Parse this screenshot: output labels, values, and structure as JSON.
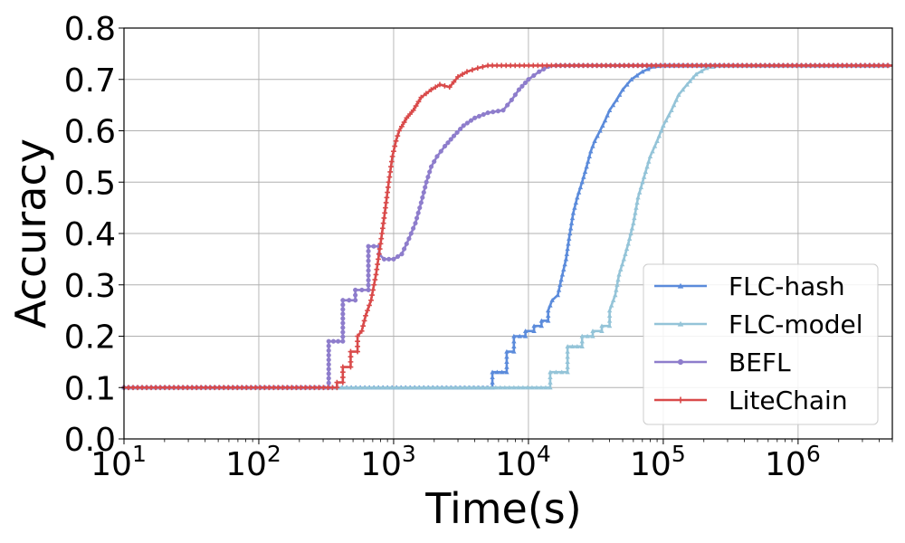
{
  "chart_data": {
    "type": "line",
    "title": "",
    "xlabel": "Time(s)",
    "ylabel": "Accuracy",
    "xscale": "log",
    "xlim": [
      10,
      5000000
    ],
    "ylim": [
      0.0,
      0.8
    ],
    "grid": true,
    "legend_position": "lower-right",
    "x_ticks": [
      {
        "value": 10,
        "base": "10",
        "exp": "1"
      },
      {
        "value": 100,
        "base": "10",
        "exp": "2"
      },
      {
        "value": 1000,
        "base": "10",
        "exp": "3"
      },
      {
        "value": 10000,
        "base": "10",
        "exp": "4"
      },
      {
        "value": 100000,
        "base": "10",
        "exp": "5"
      },
      {
        "value": 1000000,
        "base": "10",
        "exp": "6"
      }
    ],
    "y_ticks": [
      {
        "value": 0.0,
        "label": "0.0"
      },
      {
        "value": 0.1,
        "label": "0.1"
      },
      {
        "value": 0.2,
        "label": "0.2"
      },
      {
        "value": 0.3,
        "label": "0.3"
      },
      {
        "value": 0.4,
        "label": "0.4"
      },
      {
        "value": 0.5,
        "label": "0.5"
      },
      {
        "value": 0.6,
        "label": "0.6"
      },
      {
        "value": 0.7,
        "label": "0.7"
      },
      {
        "value": 0.8,
        "label": "0.8"
      }
    ],
    "series": [
      {
        "name": "FLC-hash",
        "color": "#5b8bdb",
        "marker": "triangle",
        "points": [
          [
            10,
            0.1
          ],
          [
            5400,
            0.1
          ],
          [
            5400,
            0.13
          ],
          [
            6900,
            0.13
          ],
          [
            6900,
            0.17
          ],
          [
            7800,
            0.17
          ],
          [
            7800,
            0.2
          ],
          [
            9500,
            0.2
          ],
          [
            9500,
            0.21
          ],
          [
            11000,
            0.21
          ],
          [
            11000,
            0.22
          ],
          [
            12500,
            0.22
          ],
          [
            12500,
            0.23
          ],
          [
            14000,
            0.23
          ],
          [
            14000,
            0.25
          ],
          [
            15000,
            0.27
          ],
          [
            16500,
            0.28
          ],
          [
            17500,
            0.31
          ],
          [
            19000,
            0.35
          ],
          [
            20000,
            0.39
          ],
          [
            21500,
            0.44
          ],
          [
            23000,
            0.47
          ],
          [
            25000,
            0.5
          ],
          [
            27000,
            0.53
          ],
          [
            29000,
            0.56
          ],
          [
            31000,
            0.58
          ],
          [
            34000,
            0.6
          ],
          [
            37000,
            0.62
          ],
          [
            40000,
            0.64
          ],
          [
            45000,
            0.66
          ],
          [
            50000,
            0.68
          ],
          [
            58000,
            0.7
          ],
          [
            70000,
            0.715
          ],
          [
            85000,
            0.725
          ],
          [
            100000,
            0.727
          ],
          [
            5000000,
            0.727
          ]
        ]
      },
      {
        "name": "FLC-model",
        "color": "#94c4d8",
        "marker": "triangle",
        "points": [
          [
            10,
            0.1
          ],
          [
            14500,
            0.1
          ],
          [
            14500,
            0.13
          ],
          [
            19500,
            0.13
          ],
          [
            19500,
            0.18
          ],
          [
            25000,
            0.18
          ],
          [
            25000,
            0.2
          ],
          [
            30000,
            0.2
          ],
          [
            30000,
            0.21
          ],
          [
            35000,
            0.21
          ],
          [
            35000,
            0.22
          ],
          [
            40000,
            0.22
          ],
          [
            40000,
            0.25
          ],
          [
            44000,
            0.28
          ],
          [
            47000,
            0.32
          ],
          [
            51000,
            0.35
          ],
          [
            55000,
            0.38
          ],
          [
            60000,
            0.42
          ],
          [
            65000,
            0.47
          ],
          [
            72000,
            0.51
          ],
          [
            80000,
            0.55
          ],
          [
            90000,
            0.58
          ],
          [
            100000,
            0.61
          ],
          [
            115000,
            0.64
          ],
          [
            130000,
            0.67
          ],
          [
            150000,
            0.69
          ],
          [
            175000,
            0.71
          ],
          [
            210000,
            0.722
          ],
          [
            260000,
            0.727
          ],
          [
            5000000,
            0.727
          ]
        ]
      },
      {
        "name": "BEFL",
        "color": "#8e7dcc",
        "marker": "circle",
        "points": [
          [
            10,
            0.1
          ],
          [
            330,
            0.1
          ],
          [
            330,
            0.19
          ],
          [
            420,
            0.19
          ],
          [
            420,
            0.27
          ],
          [
            520,
            0.27
          ],
          [
            520,
            0.29
          ],
          [
            650,
            0.29
          ],
          [
            650,
            0.375
          ],
          [
            780,
            0.375
          ],
          [
            780,
            0.36
          ],
          [
            850,
            0.35
          ],
          [
            1000,
            0.35
          ],
          [
            1150,
            0.36
          ],
          [
            1300,
            0.39
          ],
          [
            1450,
            0.42
          ],
          [
            1600,
            0.46
          ],
          [
            1750,
            0.5
          ],
          [
            1900,
            0.53
          ],
          [
            2100,
            0.55
          ],
          [
            2400,
            0.57
          ],
          [
            2800,
            0.59
          ],
          [
            3300,
            0.61
          ],
          [
            4000,
            0.625
          ],
          [
            5000,
            0.635
          ],
          [
            6500,
            0.64
          ],
          [
            7500,
            0.66
          ],
          [
            8500,
            0.68
          ],
          [
            10000,
            0.7
          ],
          [
            12000,
            0.715
          ],
          [
            14000,
            0.725
          ],
          [
            16000,
            0.727
          ],
          [
            5000000,
            0.727
          ]
        ]
      },
      {
        "name": "LiteChain",
        "color": "#d94a4a",
        "marker": "plus",
        "points": [
          [
            10,
            0.1
          ],
          [
            380,
            0.1
          ],
          [
            380,
            0.11
          ],
          [
            420,
            0.11
          ],
          [
            420,
            0.14
          ],
          [
            480,
            0.14
          ],
          [
            480,
            0.17
          ],
          [
            540,
            0.17
          ],
          [
            540,
            0.2
          ],
          [
            580,
            0.21
          ],
          [
            620,
            0.24
          ],
          [
            680,
            0.27
          ],
          [
            740,
            0.32
          ],
          [
            800,
            0.38
          ],
          [
            860,
            0.44
          ],
          [
            920,
            0.5
          ],
          [
            980,
            0.55
          ],
          [
            1040,
            0.58
          ],
          [
            1100,
            0.6
          ],
          [
            1250,
            0.625
          ],
          [
            1400,
            0.64
          ],
          [
            1600,
            0.665
          ],
          [
            1900,
            0.68
          ],
          [
            2200,
            0.69
          ],
          [
            2600,
            0.685
          ],
          [
            3000,
            0.705
          ],
          [
            3500,
            0.715
          ],
          [
            4200,
            0.722
          ],
          [
            5000,
            0.727
          ],
          [
            5000000,
            0.727
          ]
        ]
      }
    ]
  }
}
